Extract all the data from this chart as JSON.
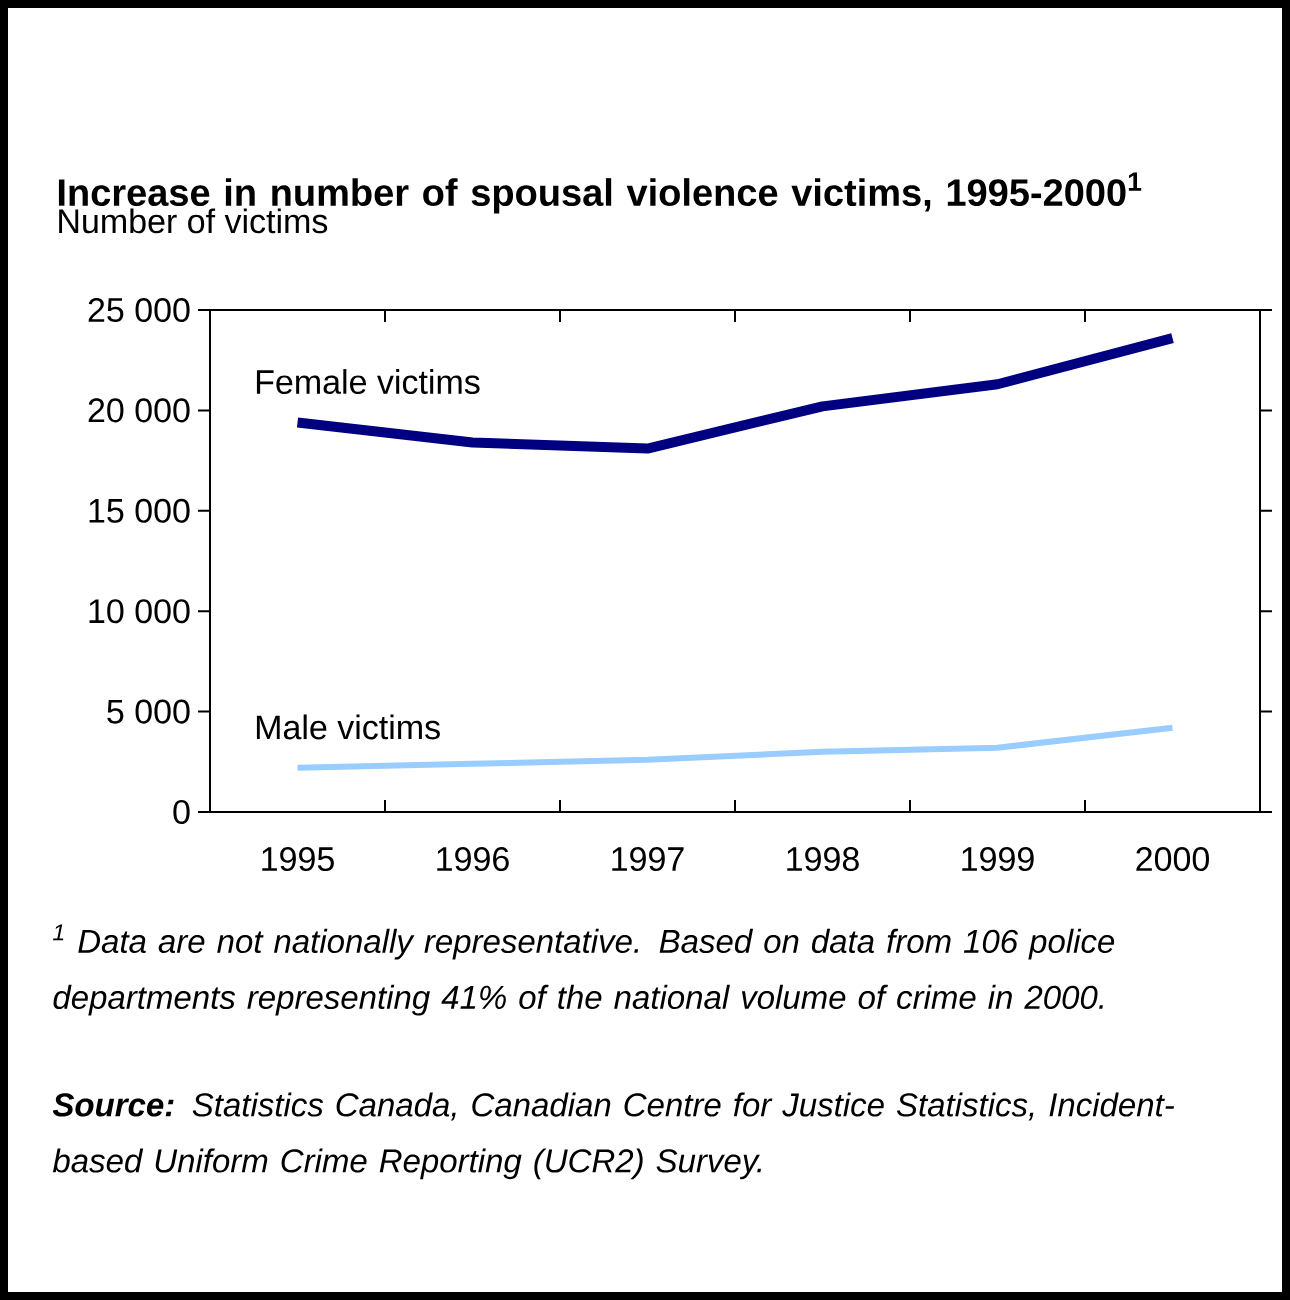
{
  "chart_data": {
    "type": "line",
    "title": "Increase in number of spousal violence victims, 1995-2000$^{1}$",
    "ylabel": "Number of victims",
    "categories": [
      "1995",
      "1996",
      "1997",
      "1998",
      "1999",
      "2000"
    ],
    "series": [
      {
        "name": "Female victims",
        "color": "#000080",
        "values": [
          19400,
          18400,
          18100,
          20200,
          21300,
          23600
        ]
      },
      {
        "name": "Male victims",
        "color": "#99ccff",
        "values": [
          2200,
          2400,
          2600,
          3000,
          3200,
          4200
        ]
      }
    ],
    "ylim": [
      0,
      25000
    ],
    "yticks": [
      0,
      {
        "value": 5000,
        "label": "5 000"
      },
      {
        "value": 10000,
        "label": "10 000"
      },
      {
        "value": 15000,
        "label": "15 000"
      },
      {
        "value": 20000,
        "label": "20 000"
      },
      {
        "value": 25000,
        "label": "25 000"
      }
    ],
    "annotations": [
      "$^{1}$ Data are not nationally representative. Based on data from 106 police departments representing 41% of the national volume of crime in 2000.",
      "**Source:** Statistics Canada, Canadian Centre for Justice Statistics, Incident-based Uniform Crime Reporting (UCR2) Survey."
    ]
  }
}
